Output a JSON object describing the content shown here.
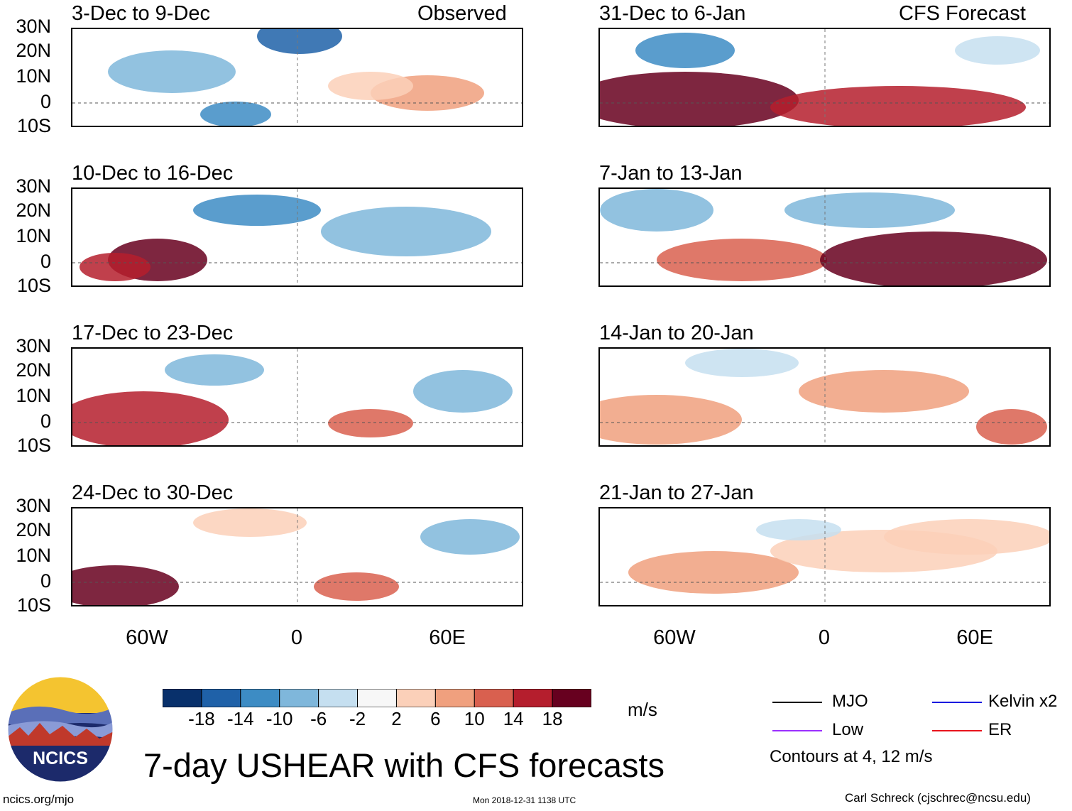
{
  "main_title": "7-day USHEAR with CFS forecasts",
  "column_labels": {
    "left": "Observed",
    "right": "CFS Forecast"
  },
  "panels_left": [
    {
      "title": "3-Dec to 9-Dec",
      "label": "Observed"
    },
    {
      "title": "10-Dec to 16-Dec",
      "label": ""
    },
    {
      "title": "17-Dec to 23-Dec",
      "label": ""
    },
    {
      "title": "24-Dec to 30-Dec",
      "label": ""
    }
  ],
  "panels_right": [
    {
      "title": "31-Dec to 6-Jan",
      "label": "CFS Forecast"
    },
    {
      "title": "7-Jan to 13-Jan",
      "label": ""
    },
    {
      "title": "14-Jan to 20-Jan",
      "label": ""
    },
    {
      "title": "21-Jan to 27-Jan",
      "label": ""
    }
  ],
  "y_axis_labels": [
    "30N",
    "20N",
    "10N",
    "0",
    "10S"
  ],
  "x_axis_labels": [
    "60W",
    "0",
    "60E"
  ],
  "colorbar": {
    "units": "m/s",
    "ticks": [
      "-18",
      "-14",
      "-10",
      "-6",
      "-2",
      "2",
      "6",
      "10",
      "14",
      "18"
    ],
    "colors": [
      "#08306b",
      "#1f61a8",
      "#3d8cc4",
      "#7fb7db",
      "#c5dff0",
      "#f7f7f7",
      "#fbd0b9",
      "#f0a07e",
      "#d9604f",
      "#b51e2d",
      "#67001f"
    ]
  },
  "legend": {
    "items": [
      {
        "label": "MJO",
        "color": "#000000"
      },
      {
        "label": "Kelvin x2",
        "color": "#1a1adf"
      },
      {
        "label": "Low",
        "color": "#9b30ff"
      },
      {
        "label": "ER",
        "color": "#e8141c"
      }
    ],
    "note": "Contours at 4, 12 m/s"
  },
  "logo_text": "NCICS",
  "footer": {
    "url": "ncics.org/mjo",
    "timestamp": "Mon 2018-12-31 1138 UTC",
    "credit": "Carl Schreck (cjschrec@ncsu.edu)"
  }
}
